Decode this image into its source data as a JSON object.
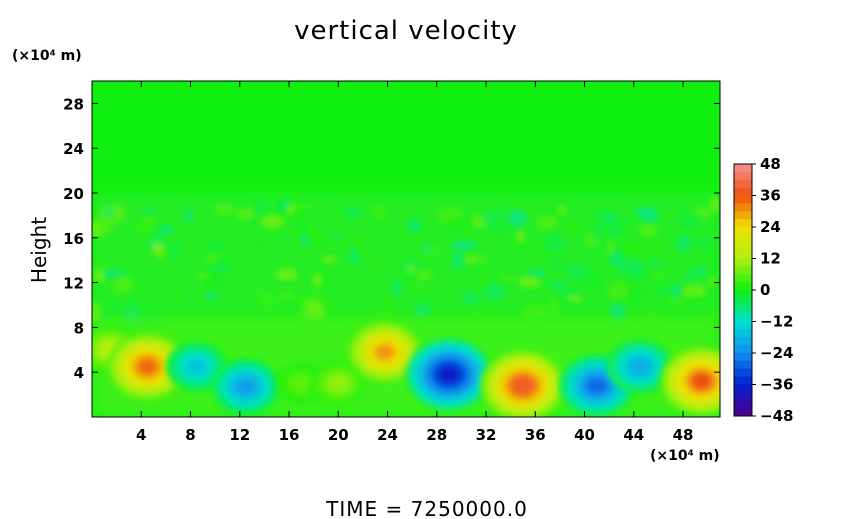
{
  "chart_data": {
    "type": "heatmap",
    "title": "vertical velocity",
    "ylabel": "Height",
    "xlabel": "",
    "x_unit": "(×10⁴ m)",
    "y_unit": "(×10⁴ m)",
    "xlim": [
      0,
      51
    ],
    "ylim": [
      0,
      30
    ],
    "x_ticks": [
      4,
      8,
      12,
      16,
      20,
      24,
      28,
      32,
      36,
      40,
      44,
      48
    ],
    "y_ticks": [
      4,
      8,
      12,
      16,
      20,
      24,
      28
    ],
    "colorbar": {
      "range": [
        -48,
        48
      ],
      "ticks": [
        48,
        36,
        24,
        12,
        0,
        -12,
        -24,
        -36,
        -48
      ],
      "tick_labels": [
        "48",
        "36",
        "24",
        "12",
        "0",
        "−12",
        "−24",
        "−36",
        "−48"
      ]
    },
    "features": [
      {
        "x": 1.5,
        "y": 6,
        "value": 14
      },
      {
        "x": 4.5,
        "y": 4.5,
        "value": 34
      },
      {
        "x": 8.5,
        "y": 4.5,
        "value": -16
      },
      {
        "x": 12.5,
        "y": 2.7,
        "value": -22
      },
      {
        "x": 17,
        "y": 3,
        "value": 6
      },
      {
        "x": 20,
        "y": 3,
        "value": 10
      },
      {
        "x": 23.8,
        "y": 5.8,
        "value": 30
      },
      {
        "x": 29,
        "y": 3.8,
        "value": -38
      },
      {
        "x": 35,
        "y": 2.8,
        "value": 38
      },
      {
        "x": 41,
        "y": 2.8,
        "value": -28
      },
      {
        "x": 44.5,
        "y": 4.5,
        "value": -20
      },
      {
        "x": 49.5,
        "y": 3.2,
        "value": 36
      }
    ],
    "footer": "TIME  =  7250000.0"
  }
}
